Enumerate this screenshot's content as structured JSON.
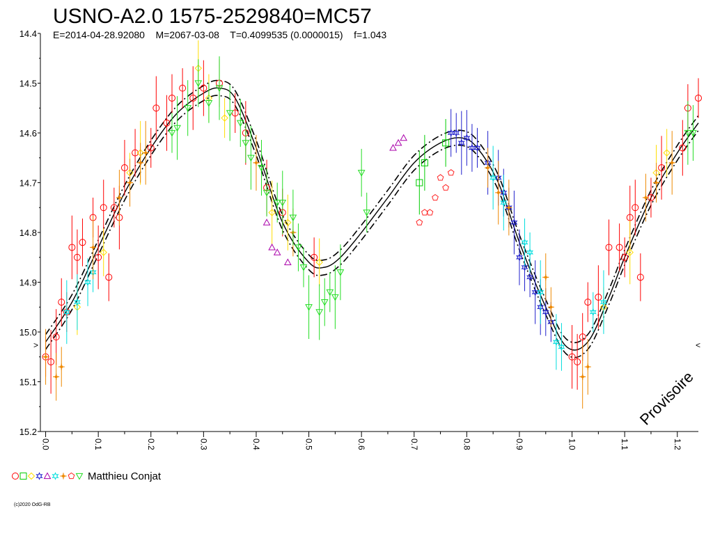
{
  "chart_data": {
    "type": "scatter",
    "title": "USNO-A2.0 1575-2529840=MC57",
    "subtitle": "E=2014-04-28.92080    M=2067-03-08    T=0.4099535 (0.0000015)    f=1.043",
    "xlabel": "",
    "ylabel": "",
    "xlim": [
      -0.01,
      1.24
    ],
    "ylim": [
      14.4,
      15.2
    ],
    "y_inverted": true,
    "x_ticks": [
      "0.0",
      "0.1",
      "0.2",
      "0.3",
      "0.4",
      "0.5",
      "0.6",
      "0.7",
      "0.8",
      "0.9",
      "1.0",
      "1.1",
      "1.2"
    ],
    "y_ticks": [
      "14.4",
      "14.5",
      "14.6",
      "14.7",
      "14.8",
      "14.9",
      "15.0",
      "15.1",
      "15.2"
    ],
    "legend_label": "Matthieu Conjat",
    "legend_placement": "bottom-left",
    "annotation": "Provisoire",
    "edge_markers": [
      ">",
      "<"
    ],
    "copyright": "(c)2020 OdG-RB",
    "model_curve": {
      "x": [
        0.0,
        0.05,
        0.1,
        0.15,
        0.2,
        0.25,
        0.3,
        0.33,
        0.36,
        0.4,
        0.45,
        0.5,
        0.53,
        0.56,
        0.6,
        0.65,
        0.7,
        0.75,
        0.79,
        0.82,
        0.86,
        0.9,
        0.95,
        0.99,
        1.03,
        1.07,
        1.1,
        1.15,
        1.2,
        1.24
      ],
      "y": [
        15.02,
        14.94,
        14.83,
        14.72,
        14.63,
        14.56,
        14.52,
        14.51,
        14.53,
        14.63,
        14.78,
        14.86,
        14.87,
        14.85,
        14.8,
        14.73,
        14.66,
        14.62,
        14.61,
        14.63,
        14.7,
        14.82,
        14.95,
        15.03,
        15.02,
        14.93,
        14.85,
        14.73,
        14.64,
        14.58
      ],
      "band": 0.015
    },
    "series": [
      {
        "name": "circle",
        "color": "#ff0000",
        "symbol": "circle",
        "points": [
          [
            0.0,
            15.05
          ],
          [
            0.01,
            15.06
          ],
          [
            0.02,
            15.01
          ],
          [
            0.03,
            14.94
          ],
          [
            0.04,
            14.96
          ],
          [
            0.05,
            14.83
          ],
          [
            0.06,
            14.85
          ],
          [
            0.07,
            14.82
          ],
          [
            0.09,
            14.77
          ],
          [
            0.1,
            14.85
          ],
          [
            0.11,
            14.75
          ],
          [
            0.12,
            14.89
          ],
          [
            0.13,
            14.75
          ],
          [
            0.14,
            14.77
          ],
          [
            0.15,
            14.67
          ],
          [
            0.17,
            14.64
          ],
          [
            0.2,
            14.63
          ],
          [
            0.21,
            14.55
          ],
          [
            0.23,
            14.58
          ],
          [
            0.24,
            14.53
          ],
          [
            0.26,
            14.51
          ],
          [
            0.28,
            14.53
          ],
          [
            0.3,
            14.51
          ],
          [
            0.33,
            14.5
          ],
          [
            0.36,
            14.56
          ],
          [
            0.38,
            14.6
          ],
          [
            0.42,
            14.71
          ],
          [
            0.45,
            14.76
          ],
          [
            0.51,
            14.85
          ],
          [
            1.0,
            15.05
          ],
          [
            1.01,
            15.06
          ],
          [
            1.02,
            15.01
          ],
          [
            1.03,
            14.94
          ],
          [
            1.05,
            14.93
          ],
          [
            1.07,
            14.83
          ],
          [
            1.09,
            14.83
          ],
          [
            1.1,
            14.85
          ],
          [
            1.11,
            14.77
          ],
          [
            1.12,
            14.75
          ],
          [
            1.13,
            14.89
          ],
          [
            1.15,
            14.73
          ],
          [
            1.17,
            14.67
          ],
          [
            1.21,
            14.63
          ],
          [
            1.22,
            14.55
          ],
          [
            1.24,
            14.53
          ]
        ]
      },
      {
        "name": "square",
        "color": "#00cc00",
        "symbol": "square",
        "points": [
          [
            0.71,
            14.7
          ],
          [
            0.72,
            14.66
          ],
          [
            0.76,
            14.62
          ]
        ]
      },
      {
        "name": "diamond",
        "color": "#ffdd00",
        "symbol": "diamond",
        "points": [
          [
            0.06,
            14.95
          ],
          [
            0.11,
            14.84
          ],
          [
            0.16,
            14.68
          ],
          [
            0.18,
            14.64
          ],
          [
            0.29,
            14.47
          ],
          [
            0.31,
            14.53
          ],
          [
            0.34,
            14.57
          ],
          [
            0.43,
            14.76
          ],
          [
            0.46,
            14.78
          ],
          [
            0.52,
            14.86
          ],
          [
            1.06,
            14.95
          ],
          [
            1.11,
            14.84
          ],
          [
            1.16,
            14.68
          ],
          [
            1.18,
            14.64
          ]
        ]
      },
      {
        "name": "star-blue",
        "color": "#2020cc",
        "symbol": "star",
        "points": [
          [
            0.77,
            14.6
          ],
          [
            0.78,
            14.6
          ],
          [
            0.79,
            14.62
          ],
          [
            0.8,
            14.61
          ],
          [
            0.81,
            14.63
          ],
          [
            0.82,
            14.63
          ],
          [
            0.84,
            14.66
          ],
          [
            0.86,
            14.69
          ],
          [
            0.87,
            14.72
          ],
          [
            0.88,
            14.75
          ],
          [
            0.89,
            14.78
          ],
          [
            0.9,
            14.85
          ],
          [
            0.91,
            14.87
          ],
          [
            0.92,
            14.89
          ],
          [
            0.93,
            14.92
          ],
          [
            0.94,
            14.95
          ],
          [
            0.95,
            14.96
          ],
          [
            0.96,
            14.98
          ]
        ]
      },
      {
        "name": "triangle",
        "color": "#aa00aa",
        "symbol": "triangle",
        "points": [
          [
            0.42,
            14.78
          ],
          [
            0.43,
            14.83
          ],
          [
            0.44,
            14.84
          ],
          [
            0.46,
            14.86
          ],
          [
            0.66,
            14.63
          ],
          [
            0.67,
            14.62
          ],
          [
            0.68,
            14.61
          ]
        ]
      },
      {
        "name": "star-cyan",
        "color": "#00dddd",
        "symbol": "star",
        "points": [
          [
            0.04,
            14.96
          ],
          [
            0.06,
            14.94
          ],
          [
            0.08,
            14.9
          ],
          [
            0.09,
            14.88
          ],
          [
            0.85,
            14.69
          ],
          [
            0.87,
            14.74
          ],
          [
            0.91,
            14.82
          ],
          [
            0.92,
            14.84
          ],
          [
            0.94,
            14.92
          ],
          [
            0.97,
            15.02
          ],
          [
            0.98,
            15.03
          ],
          [
            1.04,
            14.96
          ],
          [
            1.06,
            14.94
          ]
        ]
      },
      {
        "name": "cross",
        "color": "#ee8800",
        "symbol": "cross",
        "points": [
          [
            0.0,
            15.05
          ],
          [
            0.02,
            15.09
          ],
          [
            0.03,
            15.07
          ],
          [
            0.09,
            14.83
          ],
          [
            0.14,
            14.73
          ],
          [
            0.16,
            14.7
          ],
          [
            0.18,
            14.66
          ],
          [
            0.19,
            14.64
          ],
          [
            0.4,
            14.66
          ],
          [
            0.47,
            14.8
          ],
          [
            0.84,
            14.67
          ],
          [
            0.86,
            14.72
          ],
          [
            0.88,
            14.75
          ],
          [
            0.95,
            14.89
          ],
          [
            0.96,
            14.95
          ],
          [
            1.02,
            15.09
          ],
          [
            1.03,
            15.07
          ],
          [
            1.14,
            14.73
          ],
          [
            1.16,
            14.7
          ],
          [
            1.19,
            14.66
          ]
        ]
      },
      {
        "name": "pentagon",
        "color": "#ff2222",
        "symbol": "pentagon",
        "points": [
          [
            0.71,
            14.78
          ],
          [
            0.72,
            14.76
          ],
          [
            0.73,
            14.76
          ],
          [
            0.74,
            14.73
          ],
          [
            0.75,
            14.69
          ],
          [
            0.76,
            14.71
          ],
          [
            0.77,
            14.68
          ]
        ]
      },
      {
        "name": "triangle-down",
        "color": "#22dd22",
        "symbol": "triangle-down",
        "points": [
          [
            0.24,
            14.6
          ],
          [
            0.25,
            14.59
          ],
          [
            0.27,
            14.55
          ],
          [
            0.29,
            14.5
          ],
          [
            0.31,
            14.54
          ],
          [
            0.33,
            14.51
          ],
          [
            0.35,
            14.56
          ],
          [
            0.37,
            14.58
          ],
          [
            0.38,
            14.62
          ],
          [
            0.39,
            14.65
          ],
          [
            0.41,
            14.67
          ],
          [
            0.42,
            14.72
          ],
          [
            0.44,
            14.74
          ],
          [
            0.45,
            14.74
          ],
          [
            0.47,
            14.77
          ],
          [
            0.48,
            14.83
          ],
          [
            0.49,
            14.87
          ],
          [
            0.5,
            14.95
          ],
          [
            0.52,
            14.96
          ],
          [
            0.53,
            14.94
          ],
          [
            0.54,
            14.92
          ],
          [
            0.55,
            14.93
          ],
          [
            0.56,
            14.88
          ],
          [
            0.6,
            14.68
          ],
          [
            0.61,
            14.76
          ],
          [
            1.22,
            14.6
          ],
          [
            1.23,
            14.6
          ]
        ]
      }
    ]
  }
}
